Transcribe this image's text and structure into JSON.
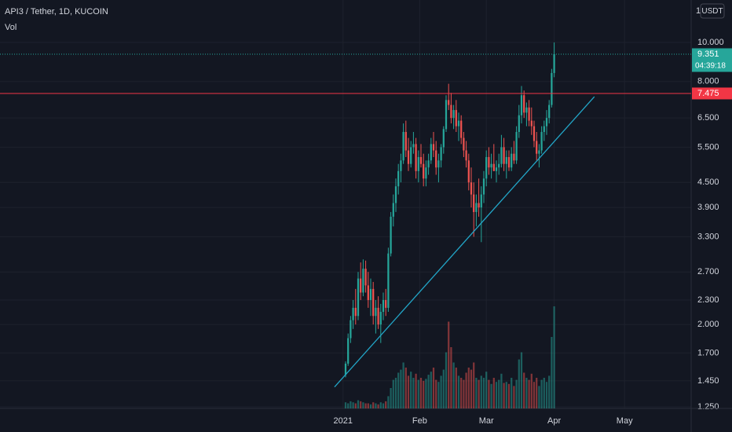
{
  "chart_data": {
    "type": "candlestick",
    "title": "API3 / Tether, 1D, KUCOIN",
    "volume_label": "Vol",
    "currency": "USDT",
    "top_label": "1",
    "log_scale": true,
    "grid": true,
    "up_color": "#26a69a",
    "down_color": "#ef5350",
    "ylim": [
      1.239,
      12.74
    ],
    "yticks": [
      {
        "value": 1.25,
        "label": "1.250"
      },
      {
        "value": 1.45,
        "label": "1.450"
      },
      {
        "value": 1.7,
        "label": "1.700"
      },
      {
        "value": 2,
        "label": "2.000"
      },
      {
        "value": 2.3,
        "label": "2.300"
      },
      {
        "value": 2.7,
        "label": "2.700"
      },
      {
        "value": 3.3,
        "label": "3.300"
      },
      {
        "value": 3.9,
        "label": "3.900"
      },
      {
        "value": 4.5,
        "label": "4.500"
      },
      {
        "value": 5.5,
        "label": "5.500"
      },
      {
        "value": 6.5,
        "label": "6.500"
      },
      {
        "value": 8,
        "label": "8.000"
      },
      {
        "value": 10,
        "label": "10.000"
      }
    ],
    "xlim": [
      -137.5,
      137.5
    ],
    "xticks": [
      {
        "value": -1,
        "label": "2021"
      },
      {
        "value": 29.5,
        "label": "Feb"
      },
      {
        "value": 56,
        "label": "Mar"
      },
      {
        "value": 83,
        "label": "Apr"
      },
      {
        "value": 111,
        "label": "May"
      }
    ],
    "ohlc": [
      [
        1.5,
        1.62,
        1.48,
        1.6
      ],
      [
        1.6,
        1.9,
        1.58,
        1.85
      ],
      [
        1.85,
        2.1,
        1.8,
        2.05
      ],
      [
        2.05,
        2.3,
        1.95,
        2.2
      ],
      [
        2.2,
        2.45,
        2,
        2.1
      ],
      [
        2.1,
        2.7,
        2.05,
        2.6
      ],
      [
        2.6,
        2.85,
        2.3,
        2.4
      ],
      [
        2.4,
        2.9,
        2.35,
        2.75
      ],
      [
        2.75,
        2.88,
        2.4,
        2.5
      ],
      [
        2.5,
        2.7,
        2.2,
        2.3
      ],
      [
        2.3,
        2.6,
        2.1,
        2.45
      ],
      [
        2.45,
        2.55,
        2,
        2.1
      ],
      [
        2.1,
        2.3,
        1.9,
        2.2
      ],
      [
        2.2,
        2.35,
        1.95,
        2
      ],
      [
        2,
        2.25,
        1.8,
        2.15
      ],
      [
        2.15,
        2.4,
        2.05,
        2.3
      ],
      [
        2.3,
        2.45,
        2.1,
        2.2
      ],
      [
        2.2,
        3.1,
        2.15,
        3
      ],
      [
        3,
        3.8,
        2.95,
        3.7
      ],
      [
        3.7,
        4.2,
        3.5,
        4
      ],
      [
        4,
        4.6,
        3.8,
        4.4
      ],
      [
        4.4,
        5,
        4.2,
        4.8
      ],
      [
        4.8,
        5.3,
        4.5,
        5.1
      ],
      [
        5.1,
        6.3,
        5,
        6
      ],
      [
        6,
        6.4,
        5.2,
        5.4
      ],
      [
        5.4,
        5.8,
        4.8,
        5
      ],
      [
        5,
        5.7,
        4.9,
        5.5
      ],
      [
        5.5,
        6,
        5.3,
        5.6
      ],
      [
        5.6,
        5.8,
        4.6,
        4.8
      ],
      [
        4.8,
        5.4,
        4.5,
        5.2
      ],
      [
        5.2,
        5.6,
        4.9,
        5
      ],
      [
        5,
        5.3,
        4.4,
        4.6
      ],
      [
        4.6,
        5.1,
        4.4,
        4.9
      ],
      [
        4.9,
        5.3,
        4.7,
        5.1
      ],
      [
        5.1,
        5.8,
        5,
        5.6
      ],
      [
        5.6,
        6,
        5.2,
        5.4
      ],
      [
        5.4,
        5.7,
        4.7,
        4.9
      ],
      [
        4.9,
        5.3,
        4.5,
        5.1
      ],
      [
        5.1,
        5.6,
        4.9,
        5.5
      ],
      [
        5.5,
        6.2,
        5.3,
        6.1
      ],
      [
        6.1,
        7.4,
        6,
        7.2
      ],
      [
        7.2,
        7.9,
        6.8,
        7
      ],
      [
        7,
        7.5,
        6.3,
        6.5
      ],
      [
        6.5,
        7,
        6.1,
        6.8
      ],
      [
        6.8,
        7.2,
        6,
        6.2
      ],
      [
        6.2,
        6.7,
        5.7,
        6.4
      ],
      [
        6.4,
        6.6,
        5.6,
        5.8
      ],
      [
        5.8,
        6,
        5.2,
        5.4
      ],
      [
        5.4,
        5.7,
        4.9,
        5.1
      ],
      [
        5.1,
        5.3,
        4.3,
        4.5
      ],
      [
        4.5,
        4.9,
        3.9,
        4.2
      ],
      [
        4.2,
        4.5,
        3.3,
        3.8
      ],
      [
        3.8,
        4.2,
        3.5,
        4
      ],
      [
        4,
        4.6,
        3.7,
        3.9
      ],
      [
        3.9,
        4.4,
        3.2,
        4.2
      ],
      [
        4.2,
        4.8,
        4,
        4.6
      ],
      [
        4.6,
        5.4,
        4.4,
        5.2
      ],
      [
        5.2,
        5.5,
        4.7,
        4.9
      ],
      [
        4.9,
        5.3,
        4.6,
        5
      ],
      [
        5,
        5.6,
        4.8,
        4.8
      ],
      [
        4.8,
        5.1,
        4.5,
        4.9
      ],
      [
        4.9,
        5.3,
        4.7,
        5
      ],
      [
        5,
        5.9,
        4.9,
        5.5
      ],
      [
        5.5,
        5.8,
        4.8,
        5
      ],
      [
        5,
        5.4,
        4.6,
        5.2
      ],
      [
        5.2,
        5.4,
        4.8,
        4.9
      ],
      [
        4.9,
        5.5,
        4.8,
        5.3
      ],
      [
        5.3,
        5.7,
        5,
        5.1
      ],
      [
        5.1,
        6.2,
        5,
        6
      ],
      [
        6,
        7,
        5.8,
        6.6
      ],
      [
        6.6,
        7.8,
        6.3,
        7.4
      ],
      [
        7.4,
        7.6,
        6.5,
        6.7
      ],
      [
        6.7,
        7.1,
        6.2,
        6.9
      ],
      [
        6.9,
        7.2,
        6.2,
        6.4
      ],
      [
        6.4,
        6.9,
        5.9,
        6.2
      ],
      [
        6.2,
        6.4,
        5.5,
        5.7
      ],
      [
        5.7,
        6,
        5.1,
        5.3
      ],
      [
        5.3,
        5.6,
        4.9,
        5.4
      ],
      [
        5.4,
        6.2,
        5.3,
        6
      ],
      [
        6,
        6.4,
        5.7,
        6.2
      ],
      [
        6.2,
        6.8,
        5.9,
        6.5
      ],
      [
        6.5,
        7.2,
        6.3,
        7
      ],
      [
        7,
        8.6,
        6.9,
        8.4
      ],
      [
        8.4,
        10,
        8.2,
        9.351
      ]
    ],
    "volume": [
      6,
      5,
      7,
      6,
      5,
      8,
      7,
      6,
      5,
      5,
      4,
      6,
      5,
      4,
      6,
      5,
      7,
      12,
      20,
      28,
      30,
      35,
      38,
      45,
      40,
      32,
      36,
      30,
      34,
      28,
      30,
      27,
      29,
      33,
      36,
      40,
      28,
      26,
      32,
      38,
      55,
      85,
      60,
      45,
      40,
      32,
      30,
      28,
      35,
      40,
      38,
      45,
      30,
      28,
      32,
      30,
      36,
      28,
      24,
      30,
      26,
      28,
      34,
      25,
      26,
      24,
      30,
      22,
      28,
      48,
      55,
      35,
      30,
      28,
      34,
      26,
      30,
      22,
      28,
      30,
      26,
      32,
      70,
      100
    ],
    "volume_ylim": [
      0,
      100
    ],
    "trendline": {
      "x": [
        -4.4,
        99
      ],
      "values": [
        1.4,
        7.34
      ],
      "color": "#22a6c8"
    },
    "price_lines": [
      {
        "value": 9.351,
        "color": "#26a69a",
        "countdown": "04:39:18"
      },
      {
        "value": 7.475,
        "color": "#f23645"
      }
    ]
  }
}
